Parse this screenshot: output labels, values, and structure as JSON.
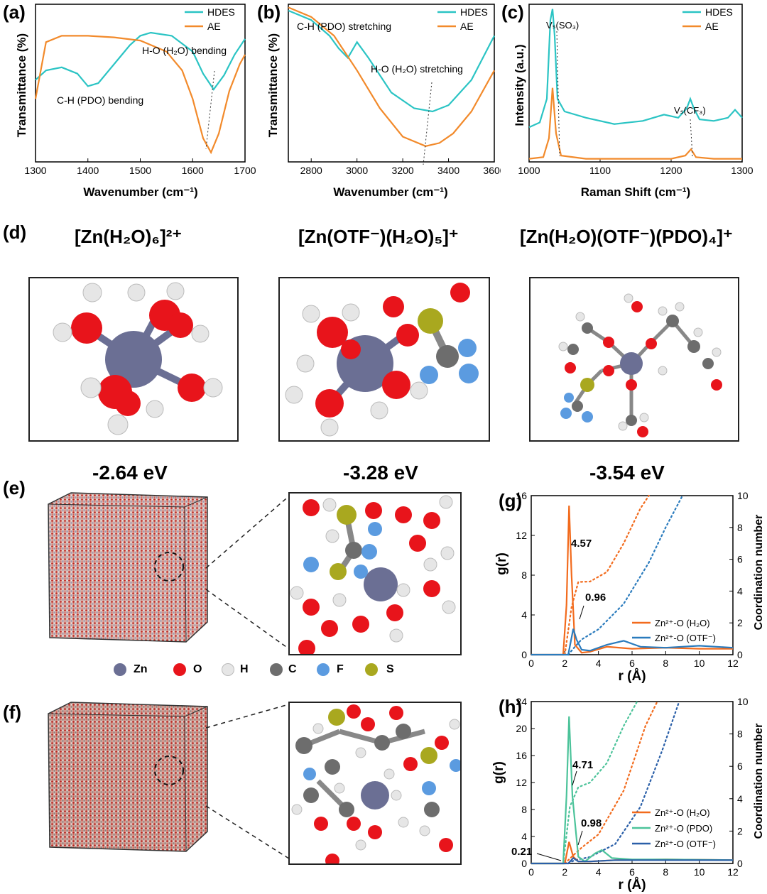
{
  "panels": {
    "a": "(a)",
    "b": "(b)",
    "c": "(c)",
    "d": "(d)",
    "e": "(e)",
    "f": "(f)",
    "g": "(g)",
    "h": "(h)"
  },
  "chart_data": [
    {
      "panel": "a",
      "type": "line",
      "xlabel": "Wavenumber (cm⁻¹)",
      "ylabel": "Transmittance (%)",
      "xlim": [
        1300,
        1700
      ],
      "xticks": [
        "1300",
        "1400",
        "1500",
        "1600",
        "1700"
      ],
      "series": [
        {
          "name": "HDES",
          "color": "#2bc4c4",
          "x": [
            1300,
            1320,
            1350,
            1380,
            1400,
            1420,
            1440,
            1460,
            1480,
            1500,
            1520,
            1560,
            1600,
            1620,
            1640,
            1660,
            1680,
            1700
          ],
          "y": [
            0.52,
            0.58,
            0.6,
            0.56,
            0.48,
            0.5,
            0.58,
            0.66,
            0.74,
            0.8,
            0.82,
            0.8,
            0.7,
            0.56,
            0.46,
            0.55,
            0.68,
            0.78
          ]
        },
        {
          "name": "AE",
          "color": "#f28a2b",
          "x": [
            1300,
            1320,
            1350,
            1400,
            1450,
            1500,
            1550,
            1580,
            1600,
            1620,
            1635,
            1650,
            1670,
            1690,
            1700
          ],
          "y": [
            0.4,
            0.76,
            0.8,
            0.8,
            0.79,
            0.77,
            0.7,
            0.58,
            0.4,
            0.15,
            0.06,
            0.18,
            0.45,
            0.62,
            0.68
          ]
        }
      ],
      "annotations": [
        "H-O (H₂O) bending",
        "C-H (PDO) bending"
      ]
    },
    {
      "panel": "b",
      "type": "line",
      "xlabel": "Wavenumber (cm⁻¹)",
      "ylabel": "Transmittance (%)",
      "xlim": [
        2700,
        3600
      ],
      "xticks": [
        "2800",
        "3000",
        "3200",
        "3400",
        "3600"
      ],
      "series": [
        {
          "name": "HDES",
          "color": "#2bc4c4",
          "x": [
            2700,
            2800,
            2880,
            2920,
            2960,
            3000,
            3050,
            3150,
            3250,
            3330,
            3400,
            3500,
            3600
          ],
          "y": [
            0.96,
            0.9,
            0.8,
            0.72,
            0.66,
            0.76,
            0.66,
            0.44,
            0.34,
            0.32,
            0.36,
            0.52,
            0.8
          ]
        },
        {
          "name": "AE",
          "color": "#f28a2b",
          "x": [
            2700,
            2800,
            2900,
            3000,
            3100,
            3200,
            3300,
            3360,
            3420,
            3500,
            3600
          ],
          "y": [
            0.98,
            0.92,
            0.8,
            0.58,
            0.34,
            0.16,
            0.1,
            0.12,
            0.18,
            0.32,
            0.58
          ]
        }
      ],
      "annotations": [
        "C-H (PDO) stretching",
        "H-O (H₂O) stretching"
      ]
    },
    {
      "panel": "c",
      "type": "line",
      "xlabel": "Raman Shift (cm⁻¹)",
      "ylabel": "Intensity (a.u.)",
      "xlim": [
        1000,
        1300
      ],
      "xticks": [
        "1000",
        "1100",
        "1200",
        "1300"
      ],
      "series": [
        {
          "name": "HDES",
          "color": "#2bc4c4",
          "x": [
            1000,
            1015,
            1025,
            1030,
            1033,
            1036,
            1040,
            1050,
            1080,
            1120,
            1160,
            1190,
            1210,
            1222,
            1227,
            1232,
            1240,
            1260,
            1280,
            1290,
            1300
          ],
          "y": [
            0.22,
            0.25,
            0.4,
            0.9,
            0.97,
            0.8,
            0.4,
            0.32,
            0.28,
            0.24,
            0.26,
            0.3,
            0.28,
            0.34,
            0.4,
            0.34,
            0.27,
            0.26,
            0.28,
            0.33,
            0.28
          ]
        },
        {
          "name": "AE",
          "color": "#f28a2b",
          "x": [
            1000,
            1020,
            1028,
            1033,
            1038,
            1045,
            1080,
            1150,
            1200,
            1220,
            1228,
            1235,
            1260,
            1300
          ],
          "y": [
            0.02,
            0.03,
            0.15,
            0.47,
            0.18,
            0.04,
            0.02,
            0.02,
            0.02,
            0.04,
            0.08,
            0.03,
            0.02,
            0.02
          ]
        }
      ],
      "annotations": [
        "Vₛ(SO₃)",
        "Vₛ(CF₃)"
      ]
    },
    {
      "panel": "g",
      "type": "line",
      "xlabel": "r (Å)",
      "ylabel": "g(r)",
      "y2label": "Coordination number",
      "xlim": [
        0,
        12
      ],
      "ylim": [
        0,
        16
      ],
      "y2lim": [
        0,
        10
      ],
      "xticks": [
        "0",
        "2",
        "4",
        "6",
        "8",
        "10",
        "12"
      ],
      "yticks": [
        "0",
        "4",
        "8",
        "12",
        "16"
      ],
      "y2ticks": [
        "0",
        "2",
        "4",
        "6",
        "8",
        "10"
      ],
      "series": [
        {
          "name": "Zn²⁺-O (H₂O)",
          "color": "#f26b1d",
          "x": [
            0,
            1.9,
            2.1,
            2.25,
            2.4,
            2.6,
            3.0,
            3.5,
            4.5,
            6,
            8,
            10,
            12
          ],
          "y": [
            0,
            0,
            5,
            15,
            8,
            1,
            0.2,
            0.3,
            0.8,
            0.6,
            0.7,
            0.6,
            0.6
          ]
        },
        {
          "name": "Zn²⁺-O (OTF⁻)",
          "color": "#2a7bbd",
          "x": [
            0,
            2.2,
            2.5,
            2.7,
            3.0,
            3.5,
            4.5,
            5.5,
            6.5,
            8,
            10,
            12
          ],
          "y": [
            0,
            0,
            2.6,
            1.5,
            0.5,
            0.4,
            1.0,
            1.4,
            0.8,
            0.7,
            0.9,
            0.7
          ]
        }
      ],
      "cn_series": [
        {
          "color": "#f26b1d",
          "x": [
            2.0,
            2.4,
            2.8,
            3.5,
            4.5,
            5.5,
            6.5,
            7.0
          ],
          "y": [
            0,
            3.0,
            4.57,
            4.6,
            5.2,
            7.0,
            9.2,
            10
          ]
        },
        {
          "color": "#2a7bbd",
          "x": [
            2.2,
            2.6,
            3.0,
            4.0,
            5.5,
            7.0,
            8.0,
            9.0
          ],
          "y": [
            0,
            0.5,
            0.96,
            1.6,
            3.2,
            5.8,
            8.0,
            10
          ]
        }
      ],
      "annotations": [
        "4.57",
        "0.96"
      ]
    },
    {
      "panel": "h",
      "type": "line",
      "xlabel": "r (Å)",
      "ylabel": "g(r)",
      "y2label": "Coordination number",
      "xlim": [
        0,
        12
      ],
      "ylim": [
        0,
        24
      ],
      "y2lim": [
        0,
        10
      ],
      "xticks": [
        "0",
        "2",
        "4",
        "6",
        "8",
        "10",
        "12"
      ],
      "yticks": [
        "0",
        "4",
        "8",
        "12",
        "16",
        "20",
        "24"
      ],
      "y2ticks": [
        "0",
        "2",
        "4",
        "6",
        "8",
        "10"
      ],
      "series": [
        {
          "name": "Zn²⁺-O (H₂O)",
          "color": "#f26b1d",
          "x": [
            0,
            2.0,
            2.25,
            2.5,
            2.8,
            3.5,
            5,
            8,
            12
          ],
          "y": [
            0,
            0,
            3.2,
            1.0,
            0.3,
            0.3,
            0.5,
            0.6,
            0.5
          ]
        },
        {
          "name": "Zn²⁺-O (PDO)",
          "color": "#4cc39a",
          "x": [
            0,
            1.9,
            2.1,
            2.25,
            2.45,
            2.8,
            3.2,
            3.8,
            4.2,
            4.8,
            6,
            8,
            12
          ],
          "y": [
            0,
            0,
            10,
            21.8,
            10,
            1,
            0.3,
            1.5,
            2,
            0.8,
            0.6,
            0.6,
            0.5
          ]
        },
        {
          "name": "Zn²⁺-O (OTF⁻)",
          "color": "#2a5fa8",
          "x": [
            0,
            2.2,
            2.5,
            2.8,
            3.5,
            5,
            8,
            12
          ],
          "y": [
            0,
            0,
            0.8,
            0.3,
            0.3,
            0.5,
            0.5,
            0.5
          ]
        }
      ],
      "cn_series": [
        {
          "color": "#4cc39a",
          "x": [
            1.9,
            2.3,
            2.8,
            3.5,
            4.5,
            5.5,
            6.3
          ],
          "y": [
            0,
            3.5,
            4.71,
            5.0,
            6.2,
            8.5,
            10
          ]
        },
        {
          "color": "#f26b1d",
          "x": [
            2.0,
            2.5,
            3.0,
            4.0,
            5.5,
            6.8,
            7.5
          ],
          "y": [
            0,
            0.5,
            0.98,
            1.8,
            4.5,
            8.5,
            10
          ]
        },
        {
          "color": "#2a5fa8",
          "x": [
            2.2,
            2.6,
            3.5,
            5.0,
            6.5,
            7.8,
            8.8
          ],
          "y": [
            0,
            0.21,
            0.4,
            1.2,
            3.5,
            7.0,
            10
          ]
        }
      ],
      "annotations": [
        "4.71",
        "0.98",
        "0.21"
      ]
    }
  ],
  "legends": {
    "hdes": "HDES",
    "ae": "AE",
    "g_h2o": "Zn²⁺-O (H₂O)",
    "g_otf": "Zn²⁺-O (OTF⁻)",
    "h_h2o": "Zn²⁺-O (H₂O)",
    "h_pdo": "Zn²⁺-O (PDO)",
    "h_otf": "Zn²⁺-O (OTF⁻)"
  },
  "annot": {
    "a_top": "H-O (H₂O) bending",
    "a_bot": "C-H (PDO) bending",
    "b_top": "C-H (PDO) stretching",
    "b_bot": "H-O (H₂O) stretching",
    "c_so3": "Vₛ(SO₃)",
    "c_cf3": "Vₛ(CF₃)",
    "g1": "4.57",
    "g2": "0.96",
    "h1": "4.71",
    "h2": "0.98",
    "h3": "0.21"
  },
  "axes": {
    "a_x": "Wavenumber (cm⁻¹)",
    "a_y": "Transmittance (%)",
    "b_x": "Wavenumber (cm⁻¹)",
    "b_y": "Transmittance (%)",
    "c_x": "Raman Shift (cm⁻¹)",
    "c_y": "Intensity (a.u.)",
    "g_x": "r (Å)",
    "g_y": "g(r)",
    "g_y2": "Coordination number",
    "h_x": "r (Å)",
    "h_y": "g(r)",
    "h_y2": "Coordination number"
  },
  "structures": {
    "titles": [
      "[Zn(H₂O)₆]²⁺",
      "[Zn(OTF⁻)(H₂O)₅]⁺",
      "[Zn(H₂O)(OTF⁻)(PDO)₄]⁺"
    ],
    "energies": [
      "-2.64 eV",
      "-3.28 eV",
      "-3.54 eV"
    ]
  },
  "atoms": {
    "items": [
      {
        "label": "Zn",
        "color": "#6b6f94"
      },
      {
        "label": "O",
        "color": "#e8141b"
      },
      {
        "label": "H",
        "color": "#e6e6e6"
      },
      {
        "label": "C",
        "color": "#6d6d6d"
      },
      {
        "label": "F",
        "color": "#5b9be0"
      },
      {
        "label": "S",
        "color": "#a9a81f"
      }
    ]
  }
}
